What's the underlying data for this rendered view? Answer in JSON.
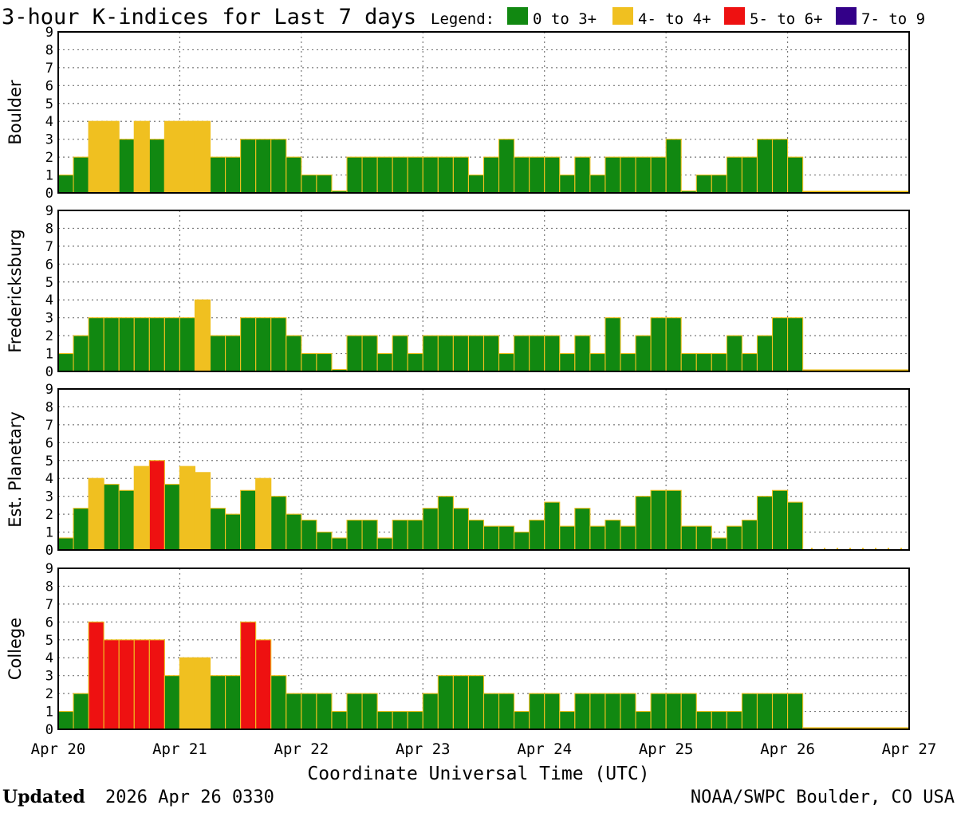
{
  "chart_data": {
    "type": "bar",
    "title": "3-hour K-indices for Last 7 days",
    "legend": {
      "label": "Legend:",
      "placement": "top-right",
      "items": [
        {
          "label": "0 to 3+",
          "color": "#118811"
        },
        {
          "label": "4- to 4+",
          "color": "#f0c020"
        },
        {
          "label": "5- to 6+",
          "color": "#ee1111"
        },
        {
          "label": "7- to 9",
          "color": "#330088"
        }
      ]
    },
    "ylim": [
      0,
      9
    ],
    "yticks": [
      "0",
      "1",
      "2",
      "3",
      "4",
      "5",
      "6",
      "7",
      "8",
      "9"
    ],
    "grid": true,
    "xlabel": "Coordinate Universal Time (UTC)",
    "xticks": [
      "Apr 20",
      "Apr 21",
      "Apr 22",
      "Apr 23",
      "Apr 24",
      "Apr 25",
      "Apr 26",
      "Apr 27"
    ],
    "intervals_per_day": 8,
    "series": [
      {
        "name": "Boulder",
        "values": [
          1,
          2,
          4,
          4,
          3,
          4,
          3,
          4,
          4,
          4,
          2,
          2,
          3,
          3,
          3,
          2,
          1,
          1,
          0,
          2,
          2,
          2,
          2,
          2,
          2,
          2,
          2,
          1,
          2,
          3,
          2,
          2,
          2,
          1,
          2,
          1,
          2,
          2,
          2,
          2,
          3,
          0,
          1,
          1,
          2,
          2,
          3,
          3,
          2
        ]
      },
      {
        "name": "Fredericksburg",
        "values": [
          1,
          2,
          3,
          3,
          3,
          3,
          3,
          3,
          3,
          4,
          2,
          2,
          3,
          3,
          3,
          2,
          1,
          1,
          0,
          2,
          2,
          1,
          2,
          1,
          2,
          2,
          2,
          2,
          2,
          1,
          2,
          2,
          2,
          1,
          2,
          1,
          3,
          1,
          2,
          3,
          3,
          1,
          1,
          1,
          2,
          1,
          2,
          3,
          3
        ]
      },
      {
        "name": "Est. Planetary",
        "values": [
          0.67,
          2.33,
          4,
          3.67,
          3.33,
          4.67,
          5,
          3.67,
          4.67,
          4.33,
          2.33,
          2,
          3.33,
          4,
          3,
          2,
          1.67,
          1,
          0.67,
          1.67,
          1.67,
          0.67,
          1.67,
          1.67,
          2.33,
          3,
          2.33,
          1.67,
          1.33,
          1.33,
          1,
          1.67,
          2.67,
          1.33,
          2.33,
          1.33,
          1.67,
          1.33,
          3,
          3.33,
          3.33,
          1.33,
          1.33,
          0.67,
          1.33,
          1.67,
          3,
          3.33,
          2.67
        ]
      },
      {
        "name": "College",
        "values": [
          1,
          2,
          6,
          5,
          5,
          5,
          5,
          3,
          4,
          4,
          3,
          3,
          6,
          5,
          3,
          2,
          2,
          2,
          1,
          2,
          2,
          1,
          1,
          1,
          2,
          3,
          3,
          3,
          2,
          2,
          1,
          2,
          2,
          1,
          2,
          2,
          2,
          2,
          1,
          2,
          2,
          2,
          1,
          1,
          1,
          2,
          2,
          2,
          2
        ]
      }
    ]
  },
  "footer": {
    "updated_label": "Updated",
    "updated_value": "2026 Apr 26 0330",
    "source": "NOAA/SWPC Boulder, CO USA"
  }
}
